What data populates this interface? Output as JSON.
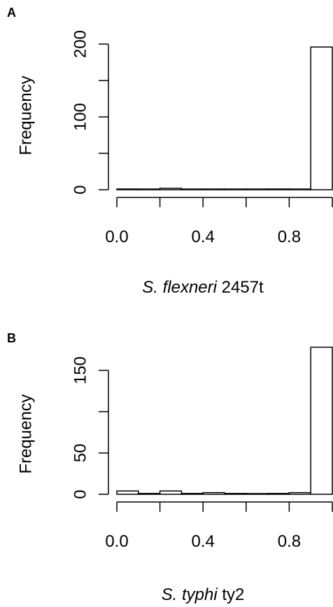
{
  "chart_data": [
    {
      "type": "bar",
      "panel_label": "A",
      "title": "",
      "ylabel": "Frequency",
      "xlabel_parts": [
        {
          "text": "S. flexneri",
          "italic": true
        },
        {
          "text": " 2457t",
          "italic": false
        }
      ],
      "xlim": [
        0,
        1.0
      ],
      "ylim": [
        0,
        200
      ],
      "x_ticks": [
        0.0,
        0.2,
        0.4,
        0.6,
        0.8,
        1.0
      ],
      "x_tick_labels": [
        "0.0",
        "0.4",
        "0.8"
      ],
      "y_ticks": [
        0,
        50,
        100,
        150,
        200
      ],
      "y_tick_labels": [
        "0",
        "100",
        "200"
      ],
      "bin_edges": [
        0.0,
        0.1,
        0.2,
        0.3,
        0.4,
        0.5,
        0.6,
        0.7,
        0.8,
        0.9,
        1.0
      ],
      "values": [
        1,
        0,
        2,
        0,
        0,
        0,
        0,
        1,
        0,
        196
      ]
    },
    {
      "type": "bar",
      "panel_label": "B",
      "title": "",
      "ylabel": "Frequency",
      "xlabel_parts": [
        {
          "text": "S. typhi",
          "italic": true
        },
        {
          "text": " ty2",
          "italic": false
        }
      ],
      "xlim": [
        0,
        1.0
      ],
      "ylim": [
        0,
        150
      ],
      "x_ticks": [
        0.0,
        0.2,
        0.4,
        0.6,
        0.8,
        1.0
      ],
      "x_tick_labels": [
        "0.0",
        "0.4",
        "0.8"
      ],
      "y_ticks": [
        0,
        50,
        100,
        150
      ],
      "y_tick_labels": [
        "0",
        "50",
        "150"
      ],
      "bin_edges": [
        0.0,
        0.1,
        0.2,
        0.3,
        0.4,
        0.5,
        0.6,
        0.7,
        0.8,
        0.9,
        1.0
      ],
      "values": [
        4,
        1,
        4,
        1,
        2,
        1,
        0,
        1,
        2,
        178
      ]
    }
  ]
}
